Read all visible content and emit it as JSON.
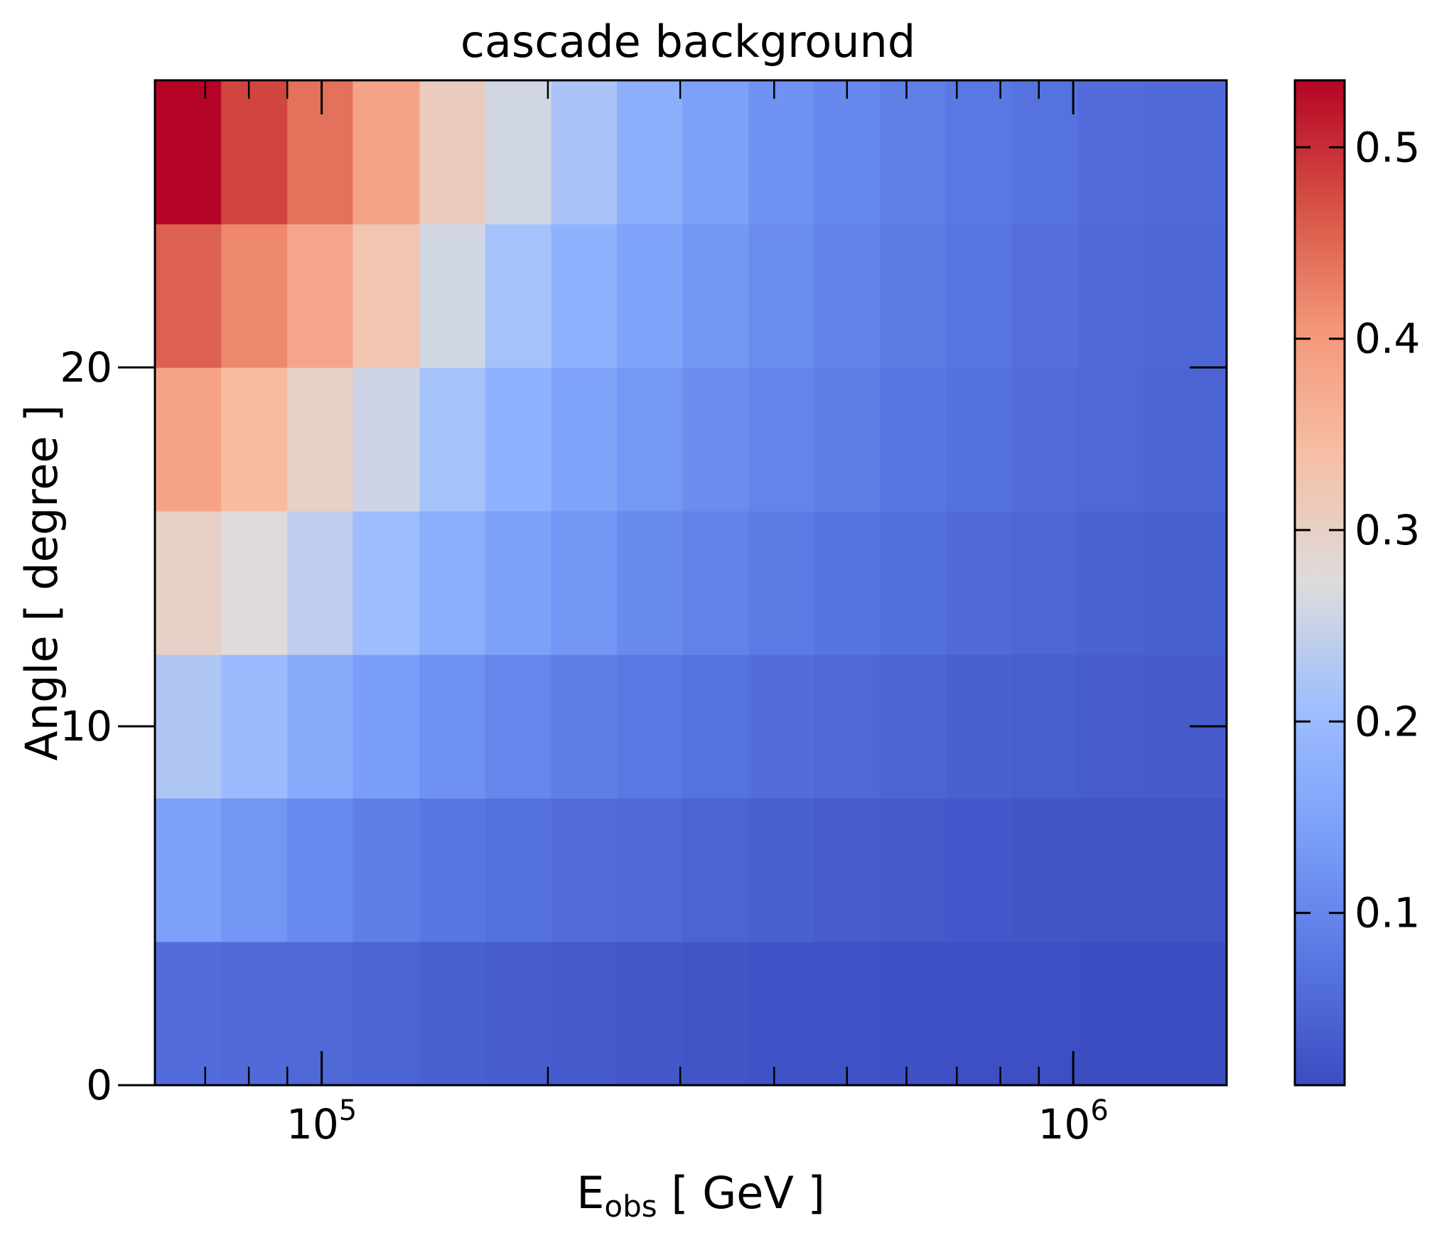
{
  "chart_data": {
    "type": "heatmap",
    "title": "cascade background",
    "xlabel_main": "E",
    "xlabel_sub": "obs",
    "xlabel_rest": " [ GeV ]",
    "ylabel": "Angle [ degree ]",
    "xscale": "log",
    "xlim": [
      60000,
      1600000
    ],
    "ylim": [
      0,
      28
    ],
    "x_major_ticks": [
      {
        "value": 100000,
        "base": "10",
        "exp": "5"
      },
      {
        "value": 1000000,
        "base": "10",
        "exp": "6"
      }
    ],
    "x_minor_ticks": [
      70000,
      80000,
      90000,
      200000,
      300000,
      400000,
      500000,
      600000,
      700000,
      800000,
      900000
    ],
    "y_ticks": [
      {
        "value": 0,
        "label": "0"
      },
      {
        "value": 10,
        "label": "10"
      },
      {
        "value": 20,
        "label": "20"
      }
    ],
    "x_edges": [
      60000,
      73500,
      90000,
      110000,
      135000,
      165000,
      202000,
      247000,
      302000,
      370000,
      452000,
      553000,
      677000,
      828000,
      1013000,
      1240000,
      1600000
    ],
    "y_edges": [
      0,
      4,
      8,
      12,
      16,
      20,
      24,
      28
    ],
    "values": [
      [
        0.06,
        0.057,
        0.052,
        0.046,
        0.041,
        0.036,
        0.031,
        0.027,
        0.024,
        0.021,
        0.019,
        0.017,
        0.015,
        0.014,
        0.013,
        0.012
      ],
      [
        0.145,
        0.125,
        0.105,
        0.088,
        0.075,
        0.066,
        0.058,
        0.052,
        0.046,
        0.04,
        0.035,
        0.031,
        0.028,
        0.025,
        0.023,
        0.022
      ],
      [
        0.225,
        0.2,
        0.165,
        0.14,
        0.118,
        0.1,
        0.088,
        0.077,
        0.068,
        0.06,
        0.052,
        0.046,
        0.041,
        0.037,
        0.034,
        0.031
      ],
      [
        0.3,
        0.275,
        0.24,
        0.205,
        0.17,
        0.145,
        0.125,
        0.108,
        0.094,
        0.082,
        0.072,
        0.063,
        0.056,
        0.05,
        0.044,
        0.039
      ],
      [
        0.385,
        0.345,
        0.3,
        0.255,
        0.215,
        0.18,
        0.15,
        0.13,
        0.112,
        0.097,
        0.085,
        0.075,
        0.066,
        0.058,
        0.052,
        0.047
      ],
      [
        0.455,
        0.42,
        0.38,
        0.325,
        0.26,
        0.215,
        0.18,
        0.15,
        0.128,
        0.11,
        0.095,
        0.083,
        0.073,
        0.064,
        0.057,
        0.051
      ],
      [
        0.535,
        0.48,
        0.44,
        0.385,
        0.31,
        0.26,
        0.22,
        0.175,
        0.145,
        0.12,
        0.103,
        0.09,
        0.078,
        0.068,
        0.061,
        0.055
      ]
    ],
    "colorbar": {
      "colormap": "coolwarm",
      "vmin": 0.01,
      "vmax": 0.535,
      "ticks": [
        {
          "value": 0.1,
          "label": "0.1"
        },
        {
          "value": 0.2,
          "label": "0.2"
        },
        {
          "value": 0.3,
          "label": "0.3"
        },
        {
          "value": 0.4,
          "label": "0.4"
        },
        {
          "value": 0.5,
          "label": "0.5"
        }
      ]
    }
  }
}
